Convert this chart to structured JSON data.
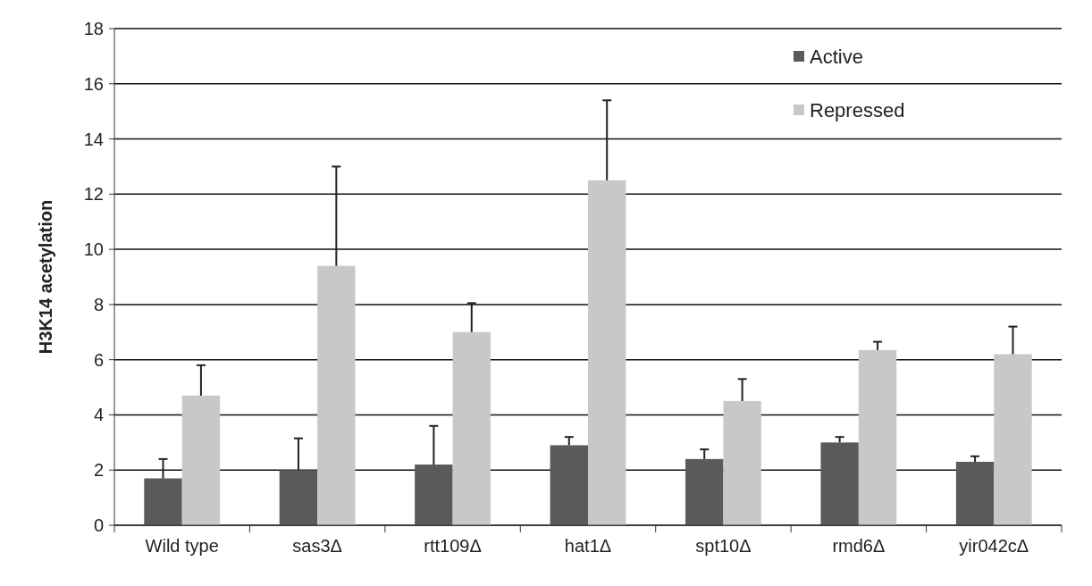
{
  "chart_data": {
    "type": "bar",
    "ylabel": "H3K14 acetylation",
    "categories": [
      "Wild type",
      "sas3Δ",
      "rtt109Δ",
      "hat1Δ",
      "spt10Δ",
      "rmd6Δ",
      "yir042cΔ"
    ],
    "series": [
      {
        "name": "Active",
        "color": "#5a5a5a",
        "values": [
          1.7,
          2.0,
          2.2,
          2.9,
          2.4,
          3.0,
          2.3
        ],
        "errors": [
          [
            1.7,
            2.4
          ],
          [
            2.0,
            3.15
          ],
          [
            2.2,
            3.6
          ],
          [
            2.9,
            3.2
          ],
          [
            2.4,
            2.75
          ],
          [
            3.0,
            3.2
          ],
          [
            2.3,
            2.5
          ]
        ]
      },
      {
        "name": "Repressed",
        "color": "#c8c8c8",
        "values": [
          4.7,
          9.4,
          7.0,
          12.5,
          4.5,
          6.35,
          6.2
        ],
        "errors": [
          [
            4.7,
            5.8
          ],
          [
            9.4,
            13.0
          ],
          [
            7.0,
            8.05
          ],
          [
            12.5,
            15.4
          ],
          [
            4.5,
            5.3
          ],
          [
            6.35,
            6.65
          ],
          [
            6.2,
            7.2
          ]
        ]
      }
    ],
    "ylim": [
      0,
      18
    ],
    "yticks": [
      0,
      2,
      4,
      6,
      8,
      10,
      12,
      14,
      16,
      18
    ],
    "grid": "y",
    "legend": "top right"
  }
}
